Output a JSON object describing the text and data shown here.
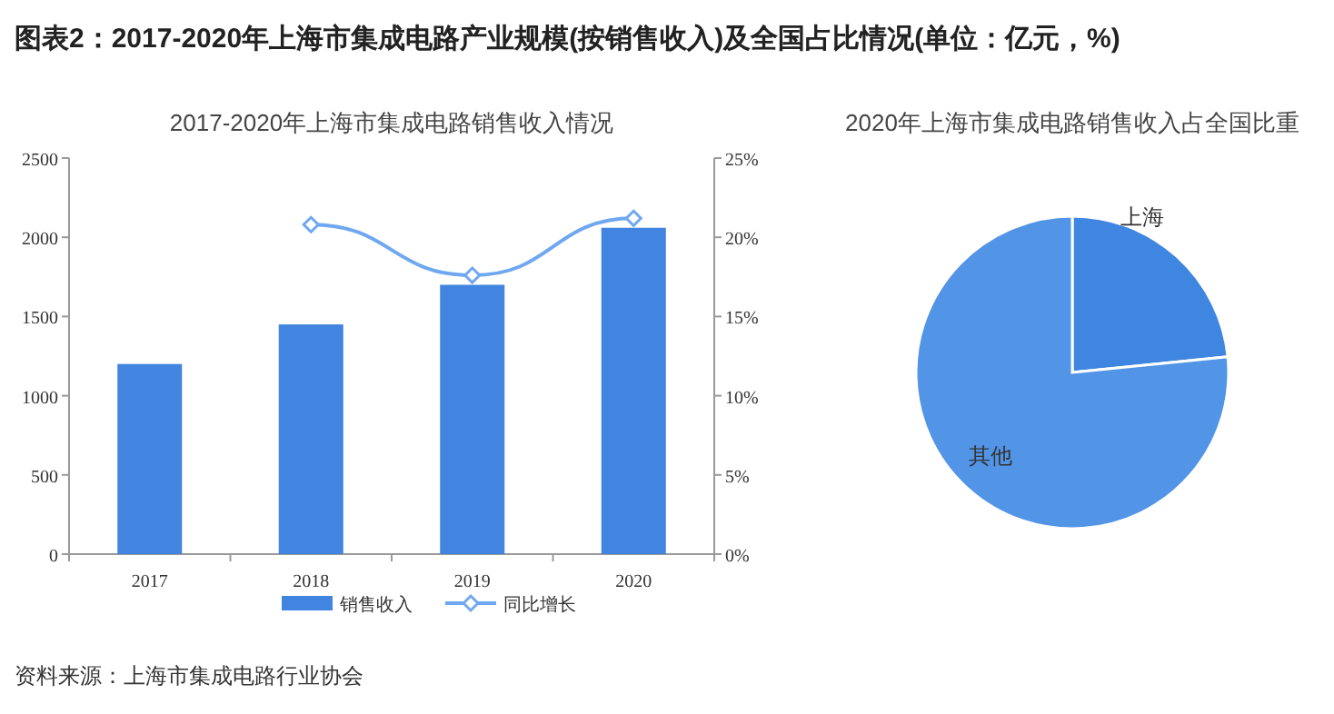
{
  "chart_data": [
    {
      "type": "bar",
      "title": "图表2：2017-2020年上海市集成电路产业规模(按销售收入)及全国占比情况(单位：亿元，%)",
      "subtitle": "2017-2020年上海市集成电路销售收入情况",
      "categories": [
        "2017",
        "2018",
        "2019",
        "2020"
      ],
      "series": [
        {
          "name": "销售收入",
          "type": "bar",
          "color": "#4285e0",
          "values": [
            1200,
            1450,
            1700,
            2060
          ]
        },
        {
          "name": "同比增长",
          "type": "line",
          "axis": "y2",
          "color": "#6fa8f0",
          "values": [
            null,
            20.8,
            17.6,
            21.2
          ]
        }
      ],
      "ylim": [
        0,
        2500
      ],
      "yticks": [
        0,
        500,
        1000,
        1500,
        2000,
        2500
      ],
      "y2lim": [
        0,
        25
      ],
      "y2ticks": [
        {
          "value": 0,
          "label": "0%"
        },
        {
          "value": 5,
          "label": "5%"
        },
        {
          "value": 10,
          "label": "10%"
        },
        {
          "value": 15,
          "label": "15%"
        },
        {
          "value": 20,
          "label": "20%"
        },
        {
          "value": 25,
          "label": "25%"
        }
      ],
      "marker": "diamond",
      "legend": "bottom",
      "grid": false,
      "annotations": [
        "资料来源：上海市集成电路行业协会"
      ]
    },
    {
      "type": "pie",
      "title": "2020年上海市集成电路销售收入占全国比重",
      "categories": [
        "上海",
        "其他"
      ],
      "values": [
        23.4,
        76.6
      ],
      "colors": [
        "#3f86e0",
        "#5294e5"
      ]
    }
  ]
}
